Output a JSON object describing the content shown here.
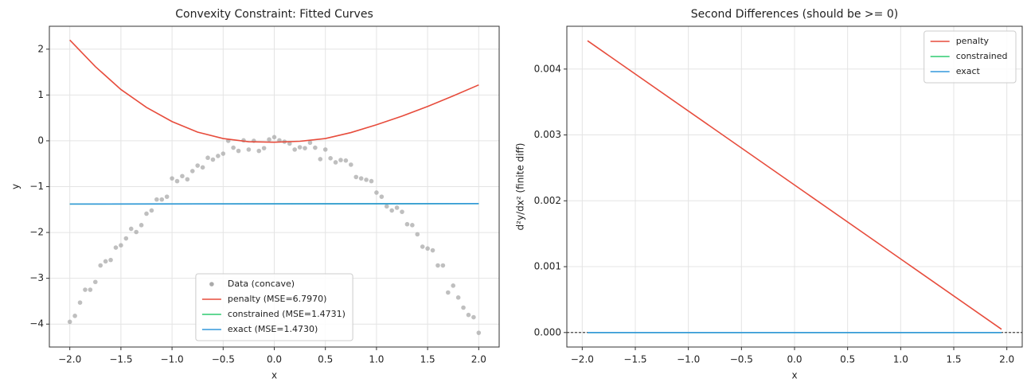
{
  "chart_data": [
    {
      "type": "line",
      "title": "Convexity Constraint: Fitted Curves",
      "xlabel": "x",
      "ylabel": "y",
      "xlim": [
        -2.2,
        2.2
      ],
      "ylim": [
        -4.5,
        2.5
      ],
      "grid": true,
      "legend": "lower center",
      "xticks": [
        {
          "value": -2,
          "label": "−2.0"
        },
        {
          "value": -1.5,
          "label": "−1.5"
        },
        {
          "value": -1,
          "label": "−1.0"
        },
        {
          "value": -0.5,
          "label": "−0.5"
        },
        {
          "value": 0,
          "label": "0.0"
        },
        {
          "value": 0.5,
          "label": "0.5"
        },
        {
          "value": 1,
          "label": "1.0"
        },
        {
          "value": 1.5,
          "label": "1.5"
        },
        {
          "value": 2,
          "label": "2.0"
        }
      ],
      "yticks": [
        {
          "value": -4,
          "label": "−4"
        },
        {
          "value": -3,
          "label": "−3"
        },
        {
          "value": -2,
          "label": "−2"
        },
        {
          "value": -1,
          "label": "−1"
        },
        0,
        1,
        2
      ],
      "series": [
        {
          "name": "Data (concave)",
          "type": "scatter",
          "color": "#aaaaaa",
          "x": [
            -2,
            -1.95,
            -1.9,
            -1.85,
            -1.8,
            -1.75,
            -1.7,
            -1.65,
            -1.6,
            -1.55,
            -1.5,
            -1.45,
            -1.4,
            -1.35,
            -1.3,
            -1.25,
            -1.2,
            -1.15,
            -1.1,
            -1.05,
            -1,
            -0.95,
            -0.9,
            -0.85,
            -0.8,
            -0.75,
            -0.7,
            -0.65,
            -0.6,
            -0.55,
            -0.5,
            -0.45,
            -0.4,
            -0.35,
            -0.3,
            -0.25,
            -0.2,
            -0.15,
            -0.1,
            -0.05,
            0,
            0.05,
            0.1,
            0.15,
            0.2,
            0.25,
            0.3,
            0.35,
            0.4,
            0.45,
            0.5,
            0.55,
            0.6,
            0.65,
            0.7,
            0.75,
            0.8,
            0.85,
            0.9,
            0.95,
            1,
            1.05,
            1.1,
            1.15,
            1.2,
            1.25,
            1.3,
            1.35,
            1.4,
            1.45,
            1.5,
            1.55,
            1.6,
            1.65,
            1.7,
            1.75,
            1.8,
            1.85,
            1.9,
            1.95,
            2
          ],
          "values": [
            -3.95,
            -3.82,
            -3.53,
            -3.25,
            -3.25,
            -3.08,
            -2.72,
            -2.63,
            -2.6,
            -2.33,
            -2.28,
            -2.13,
            -1.92,
            -1.99,
            -1.84,
            -1.59,
            -1.52,
            -1.28,
            -1.28,
            -1.22,
            -0.82,
            -0.88,
            -0.77,
            -0.84,
            -0.66,
            -0.54,
            -0.58,
            -0.37,
            -0.41,
            -0.33,
            -0.28,
            0.0,
            -0.15,
            -0.22,
            0.01,
            -0.19,
            0.0,
            -0.22,
            -0.16,
            0.03,
            0.08,
            0.01,
            -0.02,
            -0.06,
            -0.19,
            -0.14,
            -0.16,
            -0.04,
            -0.15,
            -0.4,
            -0.19,
            -0.38,
            -0.47,
            -0.42,
            -0.43,
            -0.52,
            -0.79,
            -0.82,
            -0.85,
            -0.88,
            -1.13,
            -1.22,
            -1.43,
            -1.52,
            -1.46,
            -1.55,
            -1.82,
            -1.84,
            -2.04,
            -2.31,
            -2.35,
            -2.39,
            -2.72,
            -2.72,
            -3.31,
            -3.16,
            -3.42,
            -3.64,
            -3.8,
            -3.85,
            -4.19
          ]
        },
        {
          "name": "penalty (MSE=6.7970)",
          "type": "line",
          "color": "#e74c3c",
          "x": [
            -2,
            -1.75,
            -1.5,
            -1.25,
            -1,
            -0.75,
            -0.5,
            -0.25,
            0,
            0.25,
            0.5,
            0.75,
            1,
            1.25,
            1.5,
            1.75,
            2
          ],
          "values": [
            2.2,
            1.62,
            1.12,
            0.73,
            0.42,
            0.19,
            0.05,
            -0.02,
            -0.03,
            -0.01,
            0.05,
            0.18,
            0.35,
            0.54,
            0.75,
            0.98,
            1.22
          ]
        },
        {
          "name": "constrained (MSE=1.4731)",
          "type": "line",
          "color": "#2ecc71",
          "x": [
            -2,
            2
          ],
          "values": [
            -1.38,
            -1.37
          ]
        },
        {
          "name": "exact (MSE=1.4730)",
          "type": "line",
          "color": "#3498db",
          "x": [
            -2,
            2
          ],
          "values": [
            -1.38,
            -1.37
          ]
        }
      ]
    },
    {
      "type": "line",
      "title": "Second Differences (should be >= 0)",
      "xlabel": "x",
      "ylabel": "d²y/dx² (finite diff)",
      "xlim": [
        -2.145,
        2.145
      ],
      "ylim": [
        -0.00022,
        0.00465
      ],
      "grid": true,
      "legend": "upper right",
      "xticks": [
        {
          "value": -2,
          "label": "−2.0"
        },
        {
          "value": -1.5,
          "label": "−1.5"
        },
        {
          "value": -1,
          "label": "−1.0"
        },
        {
          "value": -0.5,
          "label": "−0.5"
        },
        {
          "value": 0,
          "label": "0.0"
        },
        {
          "value": 0.5,
          "label": "0.5"
        },
        {
          "value": 1,
          "label": "1.0"
        },
        {
          "value": 1.5,
          "label": "1.5"
        },
        {
          "value": 2,
          "label": "2.0"
        }
      ],
      "yticks": [
        {
          "value": 0,
          "label": "0.000"
        },
        0.001,
        0.002,
        0.003,
        0.004
      ],
      "hline": {
        "y": 0,
        "color": "#000000",
        "dashed": true
      },
      "series": [
        {
          "name": "penalty",
          "type": "line",
          "color": "#e74c3c",
          "x": [
            -1.95,
            1.95
          ],
          "values": [
            0.00443,
            5e-05
          ]
        },
        {
          "name": "constrained",
          "type": "line",
          "color": "#2ecc71",
          "x": [
            -1.95,
            1.95
          ],
          "values": [
            0,
            0
          ]
        },
        {
          "name": "exact",
          "type": "line",
          "color": "#3498db",
          "x": [
            -1.95,
            1.95
          ],
          "values": [
            0,
            0
          ]
        }
      ]
    }
  ]
}
